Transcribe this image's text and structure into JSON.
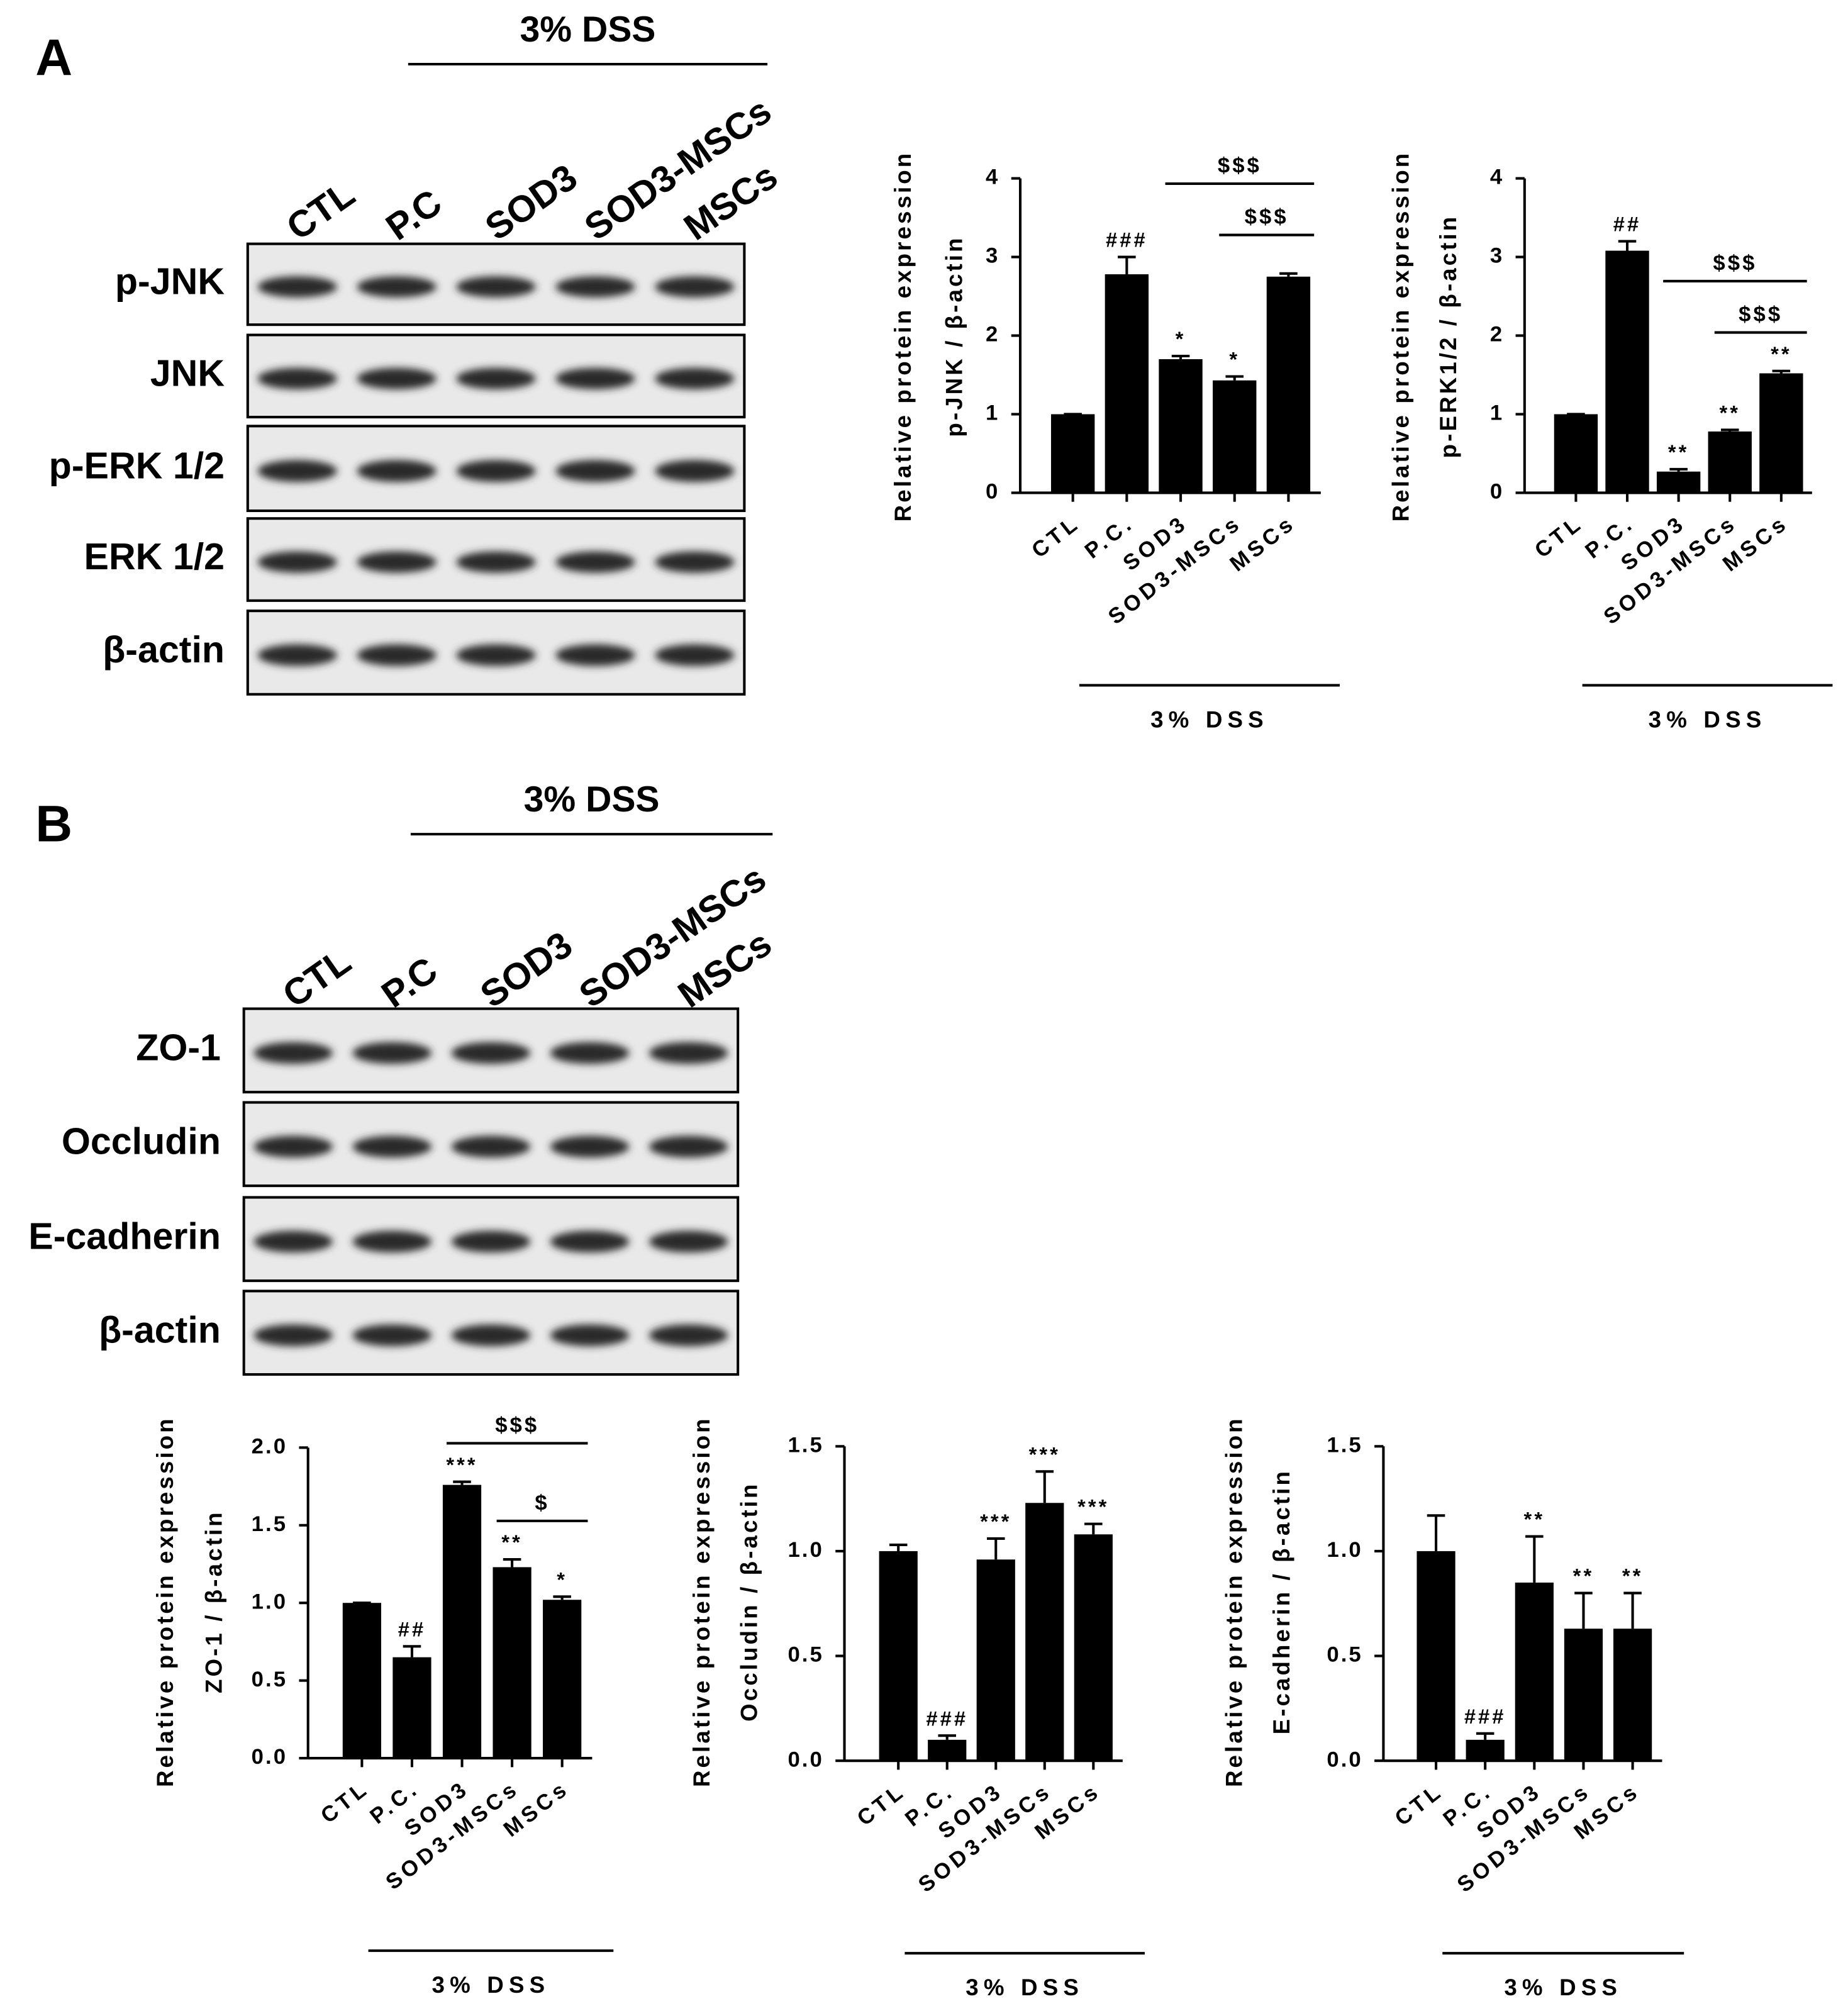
{
  "panel_labels": [
    "A",
    "B"
  ],
  "blots": [
    {
      "treatment": "3% DSS",
      "lanes": [
        "CTL",
        "P.C",
        "SOD3",
        "SOD3-MSCs",
        "MSCs"
      ],
      "rows": [
        "p-JNK",
        "JNK",
        "p-ERK 1/2",
        "ERK 1/2",
        "β-actin"
      ]
    },
    {
      "treatment": "3% DSS",
      "lanes": [
        "CTL",
        "P.C",
        "SOD3",
        "SOD3-MSCs",
        "MSCs"
      ],
      "rows": [
        "ZO-1",
        "Occludin",
        "E-cadherin",
        "β-actin"
      ]
    }
  ],
  "chart_data": [
    {
      "type": "bar",
      "ylabel": [
        "Relative protein expression",
        "p-JNK / β-actin"
      ],
      "categories": [
        "CTL",
        "P.C.",
        "SOD3",
        "SOD3-MSCs",
        "MSCs"
      ],
      "values": [
        1.0,
        2.78,
        1.7,
        1.43,
        2.75
      ],
      "errors": [
        0,
        0.22,
        0.04,
        0.05,
        0.04
      ],
      "color": "#000000",
      "ylim": [
        0,
        4
      ],
      "yticks": [
        0,
        1,
        2,
        3,
        4
      ],
      "annotations": [
        null,
        "###",
        "*",
        "*",
        null
      ],
      "brackets": [
        {
          "text": "$$$",
          "span": [
            "SOD3",
            "MSCs"
          ]
        },
        {
          "text": "$$$",
          "span": [
            "SOD3-MSCs",
            "MSCs"
          ]
        }
      ],
      "group_label": "3% DSS"
    },
    {
      "type": "bar",
      "ylabel": [
        "Relative protein expression",
        "p-ERK1/2 / β-actin"
      ],
      "categories": [
        "CTL",
        "P.C.",
        "SOD3",
        "SOD3-MSCs",
        "MSCs"
      ],
      "values": [
        1.0,
        3.08,
        0.27,
        0.78,
        1.52
      ],
      "errors": [
        0,
        0.12,
        0.03,
        0.02,
        0.03
      ],
      "color": "#000000",
      "ylim": [
        0,
        4
      ],
      "yticks": [
        0,
        1,
        2,
        3,
        4
      ],
      "annotations": [
        null,
        "##",
        "**",
        "**",
        "**"
      ],
      "brackets": [
        {
          "text": "$$$",
          "span": [
            "SOD3",
            "MSCs"
          ]
        },
        {
          "text": "$$$",
          "span": [
            "SOD3-MSCs",
            "MSCs"
          ]
        }
      ],
      "group_label": "3% DSS"
    },
    {
      "type": "bar",
      "ylabel": [
        "Relative protein expression",
        "ZO-1 / β-actin"
      ],
      "categories": [
        "CTL",
        "P.C.",
        "SOD3",
        "SOD3-MSCs",
        "MSCs"
      ],
      "values": [
        1.0,
        0.65,
        1.76,
        1.23,
        1.02
      ],
      "errors": [
        0,
        0.07,
        0.02,
        0.05,
        0.02
      ],
      "color": "#000000",
      "ylim": [
        0,
        2
      ],
      "yticks": [
        {
          "value": 0,
          "label": "0.0"
        },
        0.5,
        {
          "value": 1,
          "label": "1.0"
        },
        1.5,
        {
          "value": 2,
          "label": "2.0"
        }
      ],
      "annotations": [
        null,
        "##",
        "***",
        "**",
        "*"
      ],
      "brackets": [
        {
          "text": "$$$",
          "span": [
            "SOD3",
            "MSCs"
          ]
        },
        {
          "text": "$",
          "span": [
            "SOD3-MSCs",
            "MSCs"
          ]
        }
      ],
      "group_label": "3% DSS"
    },
    {
      "type": "bar",
      "ylabel": [
        "Relative protein expression",
        "Occludin / β-actin"
      ],
      "categories": [
        "CTL",
        "P.C.",
        "SOD3",
        "SOD3-MSCs",
        "MSCs"
      ],
      "values": [
        1.0,
        0.1,
        0.96,
        1.23,
        1.08
      ],
      "errors": [
        0.03,
        0.02,
        0.1,
        0.15,
        0.05
      ],
      "color": "#000000",
      "ylim": [
        0,
        1.5
      ],
      "yticks": [
        {
          "value": 0,
          "label": "0.0"
        },
        0.5,
        {
          "value": 1,
          "label": "1.0"
        },
        1.5
      ],
      "annotations": [
        null,
        "###",
        "***",
        "***",
        "***"
      ],
      "brackets": [],
      "group_label": "3% DSS"
    },
    {
      "type": "bar",
      "ylabel": [
        "Relative protein expression",
        "E-cadherin / β-actin"
      ],
      "categories": [
        "CTL",
        "P.C.",
        "SOD3",
        "SOD3-MSCs",
        "MSCs"
      ],
      "values": [
        1.0,
        0.1,
        0.85,
        0.63,
        0.63
      ],
      "errors": [
        0.17,
        0.03,
        0.22,
        0.17,
        0.17
      ],
      "color": "#000000",
      "ylim": [
        0,
        1.5
      ],
      "yticks": [
        {
          "value": 0,
          "label": "0.0"
        },
        0.5,
        {
          "value": 1,
          "label": "1.0"
        },
        1.5
      ],
      "annotations": [
        null,
        "###",
        "**",
        "**",
        "**"
      ],
      "brackets": [],
      "group_label": "3% DSS"
    }
  ]
}
